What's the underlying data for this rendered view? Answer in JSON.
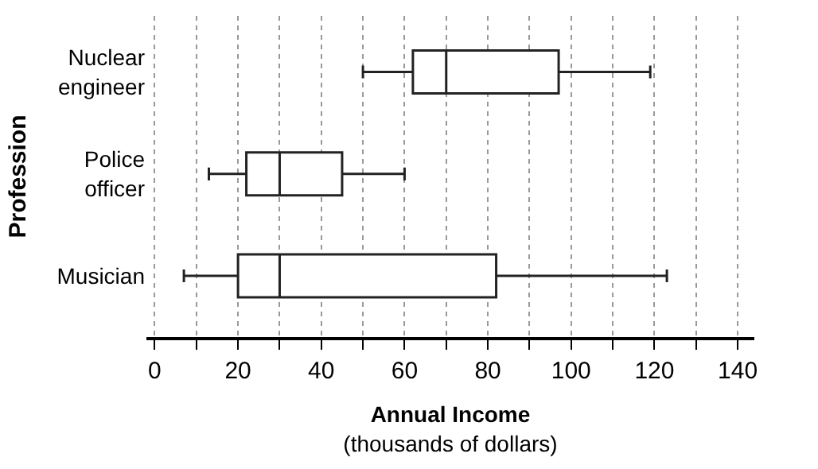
{
  "chart_data": {
    "type": "box",
    "orientation": "horizontal",
    "categories": [
      "Nuclear engineer",
      "Police officer",
      "Musician"
    ],
    "boxes": [
      {
        "low": 50,
        "q1": 62,
        "median": 70,
        "q3": 97,
        "high": 119
      },
      {
        "low": 13,
        "q1": 22,
        "median": 30,
        "q3": 45,
        "high": 60
      },
      {
        "low": 7,
        "q1": 20,
        "median": 30,
        "q3": 82,
        "high": 123
      }
    ],
    "color": "#222222",
    "xlabel": "Annual Income\n(thousands of dollars)",
    "ylabel": "Profession",
    "xlim": [
      -2,
      144
    ],
    "xticks": [
      0,
      {
        "value": 10,
        "label": null
      },
      20,
      {
        "value": 30,
        "label": null
      },
      40,
      {
        "value": 50,
        "label": null
      },
      60,
      {
        "value": 70,
        "label": null
      },
      80,
      {
        "value": 90,
        "label": null
      },
      100,
      {
        "value": 110,
        "label": null
      },
      120,
      {
        "value": 130,
        "label": null
      },
      140
    ],
    "grid": "x",
    "legend": false
  }
}
